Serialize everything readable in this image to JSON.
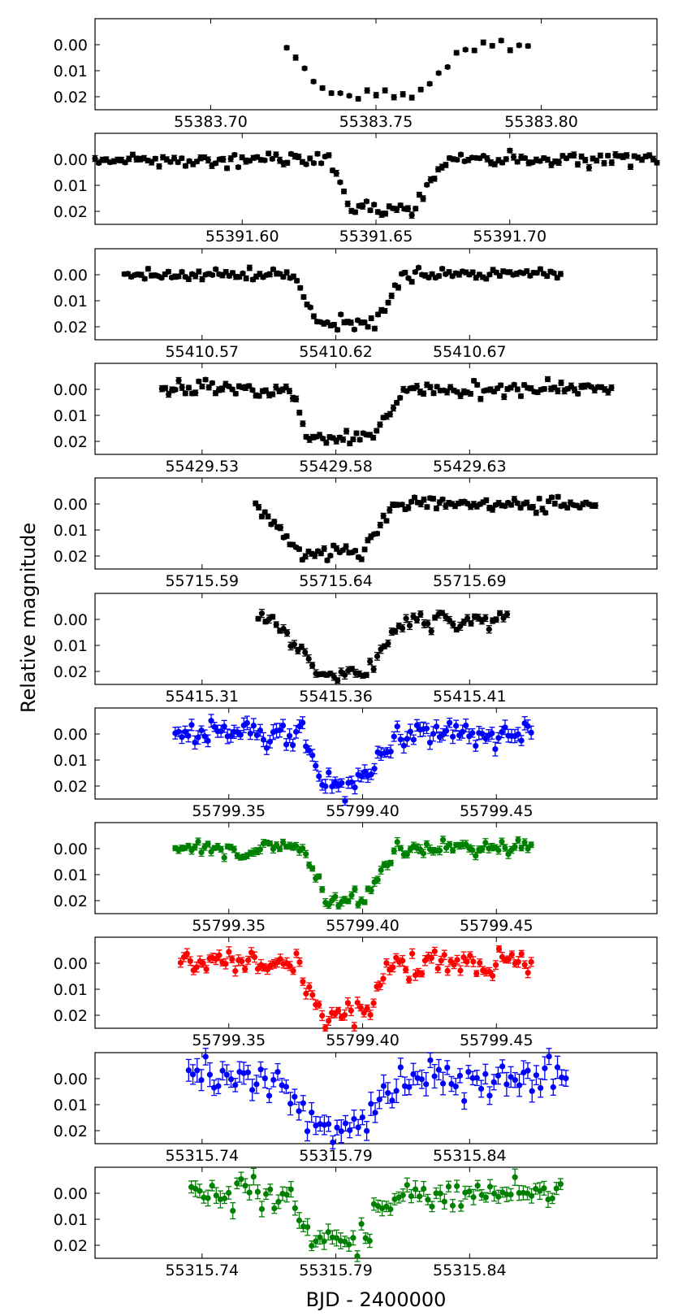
{
  "figure": {
    "xlabel": "BJD - 2400000",
    "ylabel": "Relative magnitude"
  },
  "chart_data": [
    {
      "type": "scatter",
      "color": "#000000",
      "ylim": [
        0.025,
        -0.01
      ],
      "xlim": [
        55383.665,
        55383.835
      ],
      "xticks": [
        "55383.70",
        "55383.75",
        "55383.80"
      ],
      "xtick_values": [
        55383.7,
        55383.75,
        55383.8
      ],
      "yticks": [
        "0.00",
        "0.01",
        "0.02"
      ],
      "ytick_values": [
        0.0,
        0.01,
        0.02
      ],
      "transit": {
        "start": 55383.722,
        "ingress_end": 55383.735,
        "egress_start": 55383.764,
        "end": 55383.777,
        "depth": 0.0195
      },
      "data_range": [
        55383.723,
        55383.796
      ],
      "n_points": 28,
      "scatter": 0.0012,
      "error": 0.0008,
      "seed": 11
    },
    {
      "type": "scatter",
      "color": "#000000",
      "ylim": [
        0.025,
        -0.01
      ],
      "xlim": [
        55391.545,
        55391.755
      ],
      "xticks": [
        "55391.60",
        "55391.65",
        "55391.70"
      ],
      "xtick_values": [
        55391.6,
        55391.65,
        55391.7
      ],
      "yticks": [
        "0.00",
        "0.01",
        "0.02"
      ],
      "ytick_values": [
        0.0,
        0.01,
        0.02
      ],
      "transit": {
        "start": 55391.633,
        "ingress_end": 55391.64,
        "egress_start": 55391.664,
        "end": 55391.676,
        "depth": 0.0185
      },
      "data_range": [
        55391.545,
        55391.755
      ],
      "n_points": 150,
      "scatter": 0.0012,
      "error": 0.0009,
      "seed": 22
    },
    {
      "type": "scatter",
      "color": "#000000",
      "ylim": [
        0.025,
        -0.01
      ],
      "xlim": [
        55410.53,
        55410.74
      ],
      "xticks": [
        "55410.57",
        "55410.62",
        "55410.67"
      ],
      "xtick_values": [
        55410.57,
        55410.62,
        55410.67
      ],
      "yticks": [
        "0.00",
        "0.01",
        "0.02"
      ],
      "ytick_values": [
        0.0,
        0.01,
        0.02
      ],
      "transit": {
        "start": 55410.605,
        "ingress_end": 55410.612,
        "egress_start": 55410.635,
        "end": 55410.645,
        "depth": 0.0185
      },
      "data_range": [
        55410.541,
        55410.704
      ],
      "n_points": 130,
      "scatter": 0.0011,
      "error": 0.0008,
      "seed": 33
    },
    {
      "type": "scatter",
      "color": "#000000",
      "ylim": [
        0.025,
        -0.01
      ],
      "xlim": [
        55429.49,
        55429.7
      ],
      "xticks": [
        "55429.53",
        "55429.58",
        "55429.63"
      ],
      "xtick_values": [
        55429.53,
        55429.58,
        55429.63
      ],
      "yticks": [
        "0.00",
        "0.01",
        "0.02"
      ],
      "ytick_values": [
        0.0,
        0.01,
        0.02
      ],
      "transit": {
        "start": 55429.563,
        "ingress_end": 55429.57,
        "egress_start": 55429.594,
        "end": 55429.606,
        "depth": 0.0185
      },
      "data_range": [
        55429.515,
        55429.683
      ],
      "n_points": 135,
      "scatter": 0.0013,
      "error": 0.0009,
      "seed": 44
    },
    {
      "type": "scatter",
      "color": "#000000",
      "ylim": [
        0.025,
        -0.01
      ],
      "xlim": [
        55715.55,
        55715.76
      ],
      "xticks": [
        "55715.59",
        "55715.64",
        "55715.69"
      ],
      "xtick_values": [
        55715.59,
        55715.64,
        55715.69
      ],
      "yticks": [
        "0.00",
        "0.01",
        "0.02"
      ],
      "ytick_values": [
        0.0,
        0.01,
        0.02
      ],
      "transit": {
        "start": 55715.611,
        "ingress_end": 55715.626,
        "egress_start": 55715.65,
        "end": 55715.662,
        "depth": 0.019
      },
      "data_range": [
        55715.61,
        55715.737
      ],
      "n_points": 110,
      "scatter": 0.0013,
      "error": 0.0009,
      "seed": 55
    },
    {
      "type": "scatter",
      "color": "#000000",
      "ylim": [
        0.025,
        -0.01
      ],
      "xlim": [
        55415.27,
        55415.48
      ],
      "xticks": [
        "55415.31",
        "55415.36",
        "55415.41"
      ],
      "xtick_values": [
        55415.31,
        55415.36,
        55415.41
      ],
      "yticks": [
        "0.00",
        "0.01",
        "0.02"
      ],
      "ytick_values": [
        0.0,
        0.01,
        0.02
      ],
      "transit": {
        "start": 55415.337,
        "ingress_end": 55415.353,
        "egress_start": 55415.371,
        "end": 55415.386,
        "depth": 0.021
      },
      "data_range": [
        55415.331,
        55415.424
      ],
      "n_points": 70,
      "scatter": 0.0016,
      "error": 0.0012,
      "seed": 66
    },
    {
      "type": "scatter",
      "color": "#0000ff",
      "ylim": [
        0.025,
        -0.01
      ],
      "xlim": [
        55799.3,
        55799.51
      ],
      "xticks": [
        "55799.35",
        "55799.40",
        "55799.45"
      ],
      "xtick_values": [
        55799.35,
        55799.4,
        55799.45
      ],
      "yticks": [
        "0.00",
        "0.01",
        "0.02"
      ],
      "ytick_values": [
        0.0,
        0.01,
        0.02
      ],
      "transit": {
        "start": 55799.378,
        "ingress_end": 55799.386,
        "egress_start": 55799.4,
        "end": 55799.413,
        "depth": 0.0195
      },
      "data_range": [
        55799.33,
        55799.463
      ],
      "n_points": 110,
      "scatter": 0.0026,
      "error": 0.0022,
      "seed": 77
    },
    {
      "type": "scatter",
      "color": "#008000",
      "ylim": [
        0.025,
        -0.01
      ],
      "xlim": [
        55799.3,
        55799.51
      ],
      "xticks": [
        "55799.35",
        "55799.40",
        "55799.45"
      ],
      "xtick_values": [
        55799.35,
        55799.4,
        55799.45
      ],
      "yticks": [
        "0.00",
        "0.01",
        "0.02"
      ],
      "ytick_values": [
        0.0,
        0.01,
        0.02
      ],
      "transit": {
        "start": 55799.378,
        "ingress_end": 55799.386,
        "egress_start": 55799.4,
        "end": 55799.413,
        "depth": 0.0195
      },
      "data_range": [
        55799.33,
        55799.463
      ],
      "n_points": 110,
      "scatter": 0.0016,
      "error": 0.0013,
      "seed": 88
    },
    {
      "type": "scatter",
      "color": "#ff0000",
      "ylim": [
        0.025,
        -0.01
      ],
      "xlim": [
        55799.3,
        55799.51
      ],
      "xticks": [
        "55799.35",
        "55799.40",
        "55799.45"
      ],
      "xtick_values": [
        55799.35,
        55799.4,
        55799.45
      ],
      "yticks": [
        "0.00",
        "0.01",
        "0.02"
      ],
      "ytick_values": [
        0.0,
        0.01,
        0.02
      ],
      "transit": {
        "start": 55799.376,
        "ingress_end": 55799.383,
        "egress_start": 55799.401,
        "end": 55799.411,
        "depth": 0.0195
      },
      "data_range": [
        55799.332,
        55799.463
      ],
      "n_points": 110,
      "scatter": 0.0024,
      "error": 0.0016,
      "seed": 99
    },
    {
      "type": "scatter",
      "color": "#0000ff",
      "ylim": [
        0.025,
        -0.01
      ],
      "xlim": [
        55315.7,
        55315.91
      ],
      "xticks": [
        "55315.74",
        "55315.79",
        "55315.84"
      ],
      "xtick_values": [
        55315.74,
        55315.79,
        55315.84
      ],
      "yticks": [
        "0.00",
        "0.01",
        "0.02"
      ],
      "ytick_values": [
        0.0,
        0.01,
        0.02
      ],
      "transit": {
        "start": 55315.768,
        "ingress_end": 55315.781,
        "egress_start": 55315.798,
        "end": 55315.812,
        "depth": 0.018
      },
      "data_range": [
        55315.735,
        55315.876
      ],
      "n_points": 90,
      "scatter": 0.0035,
      "error": 0.0035,
      "seed": 111
    },
    {
      "type": "scatter",
      "color": "#008000",
      "ylim": [
        0.025,
        -0.01
      ],
      "xlim": [
        55315.7,
        55315.91
      ],
      "xticks": [
        "55315.74",
        "55315.79",
        "55315.84"
      ],
      "xtick_values": [
        55315.74,
        55315.79,
        55315.84
      ],
      "yticks": [
        "0.00",
        "0.01",
        "0.02"
      ],
      "ytick_values": [
        0.0,
        0.01,
        0.02
      ],
      "transit": {
        "start": 55315.772,
        "ingress_end": 55315.781,
        "egress_start": 55315.799,
        "end": 55315.812,
        "depth": 0.019
      },
      "data_range": [
        55315.736,
        55315.874
      ],
      "n_points": 90,
      "scatter": 0.0027,
      "error": 0.0025,
      "seed": 122
    }
  ]
}
